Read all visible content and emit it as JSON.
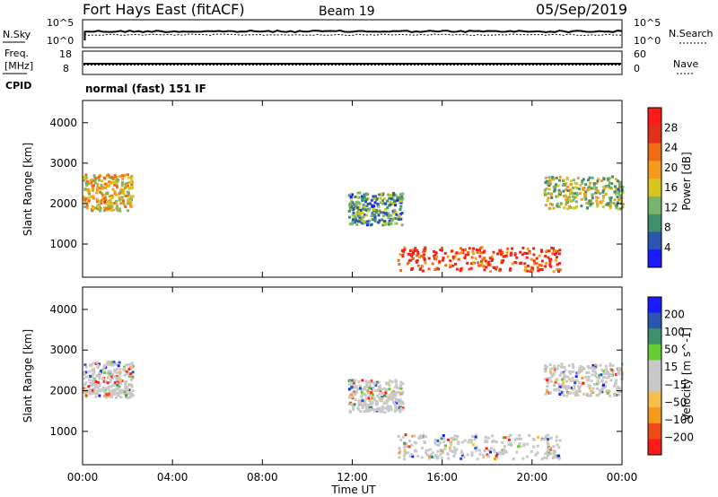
{
  "header": {
    "station": "Fort Hays East (fitACF)",
    "beam": "Beam 19",
    "date": "05/Sep/2019"
  },
  "sky_panel": {
    "left_label": "N.Sky",
    "right_label": "N.Search",
    "left_ticks": [
      "10^5",
      "10^0"
    ],
    "right_ticks": [
      "10^5",
      "10^0"
    ]
  },
  "freq_panel": {
    "left_label_line1": "Freq.",
    "left_label_line2": "[MHz]",
    "left_ticks": [
      "18",
      "8"
    ],
    "right_label": "Nave",
    "right_ticks": [
      "60",
      "0"
    ],
    "cpid_label": "CPID",
    "cpid_text": "normal (fast) 151 IF"
  },
  "colors": {
    "power_scale": [
      "#1a1aff",
      "#2a55b0",
      "#3f8f6b",
      "#79b66b",
      "#d8c61e",
      "#f49b1c",
      "#f06a14",
      "#e0301a",
      "#ff1a1a"
    ],
    "velocity_scale": [
      "#ff1a1a",
      "#ee4a15",
      "#f49b1c",
      "#f4c04a",
      "#c8c8c8",
      "#c8c8c8",
      "#66cc33",
      "#3f8f6b",
      "#2a55b0",
      "#1a1aff"
    ]
  },
  "chart_data": [
    {
      "type": "heatmap",
      "title": "",
      "xlabel": "Time UT",
      "ylabel": "Slant Range [km]",
      "x_ticks": [
        "00:00",
        "04:00",
        "08:00",
        "12:00",
        "16:00",
        "20:00",
        "00:00"
      ],
      "y_ticks": [
        "1000",
        "2000",
        "3000",
        "4000"
      ],
      "ylim": [
        180,
        4550
      ],
      "colorbar_label": "Power [dB]",
      "colorbar_ticks": [
        "4",
        "8",
        "12",
        "16",
        "20",
        "24",
        "28"
      ],
      "colorbar_range": [
        0,
        32
      ],
      "scatter_regions": [
        {
          "t_start": 0.0,
          "t_end": 2.2,
          "r_center": 2300,
          "r_spread": 450,
          "power": 18
        },
        {
          "t_start": 11.8,
          "t_end": 14.2,
          "r_center": 1900,
          "r_spread": 400,
          "power": 10
        },
        {
          "t_start": 14.0,
          "t_end": 21.2,
          "r_center": 650,
          "r_spread": 300,
          "power": 26
        },
        {
          "t_start": 20.5,
          "t_end": 24.0,
          "r_center": 2300,
          "r_spread": 400,
          "power": 14
        }
      ]
    },
    {
      "type": "heatmap",
      "title": "",
      "xlabel": "Time UT",
      "ylabel": "Slant Range [km]",
      "x_ticks": [
        "00:00",
        "04:00",
        "08:00",
        "12:00",
        "16:00",
        "20:00",
        "00:00"
      ],
      "y_ticks": [
        "1000",
        "2000",
        "3000",
        "4000"
      ],
      "ylim": [
        180,
        4550
      ],
      "colorbar_label": "Velocity [m s^-1]",
      "colorbar_ticks": [
        "200",
        "100",
        "50",
        "15",
        "−15",
        "−50",
        "−100",
        "−200"
      ],
      "colorbar_range": [
        -250,
        250
      ],
      "scatter_regions": [
        {
          "t_start": 0.0,
          "t_end": 2.2,
          "r_center": 2300,
          "r_spread": 450,
          "velocity": -20
        },
        {
          "t_start": 11.8,
          "t_end": 14.2,
          "r_center": 1900,
          "r_spread": 400,
          "velocity": 0
        },
        {
          "t_start": 14.0,
          "t_end": 21.2,
          "r_center": 650,
          "r_spread": 300,
          "velocity": 0
        },
        {
          "t_start": 20.5,
          "t_end": 24.0,
          "r_center": 2300,
          "r_spread": 400,
          "velocity": 0
        }
      ]
    }
  ]
}
